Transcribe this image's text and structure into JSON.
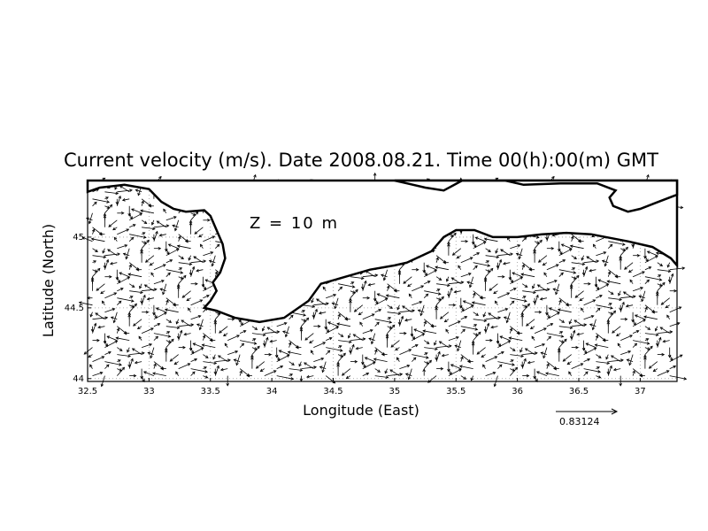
{
  "chart_data": {
    "type": "vector-field",
    "title": "Current velocity (m/s). Date 2008.08.21. Time 00(h):00(m) GMT",
    "xlabel": "Longitude (East)",
    "ylabel": "Latitude (North)",
    "annotation": "Z = 10 m",
    "reference_vector_label": "0.83124",
    "reference_vector_value": 0.83124,
    "xlim": [
      32.5,
      37.3
    ],
    "ylim": [
      43.98,
      45.4
    ],
    "x_ticks": [
      32.5,
      33,
      33.5,
      34,
      34.5,
      35,
      35.5,
      36,
      36.5,
      37
    ],
    "x_tick_labels": [
      "32.5",
      "33",
      "33.5",
      "34",
      "34.5",
      "35",
      "35.5",
      "36",
      "36.5",
      "37"
    ],
    "y_ticks": [
      44,
      44.5,
      45
    ],
    "y_tick_labels": [
      "44",
      "44.5",
      "45"
    ],
    "grid": true,
    "coastline_south_lon_lat": [
      [
        32.5,
        45.32
      ],
      [
        32.6,
        45.35
      ],
      [
        32.8,
        45.37
      ],
      [
        33.0,
        45.34
      ],
      [
        33.1,
        45.25
      ],
      [
        33.2,
        45.2
      ],
      [
        33.3,
        45.18
      ],
      [
        33.45,
        45.19
      ],
      [
        33.5,
        45.15
      ],
      [
        33.55,
        45.05
      ],
      [
        33.6,
        44.95
      ],
      [
        33.62,
        44.85
      ],
      [
        33.58,
        44.75
      ],
      [
        33.52,
        44.68
      ],
      [
        33.55,
        44.62
      ],
      [
        33.5,
        44.55
      ],
      [
        33.45,
        44.5
      ],
      [
        33.55,
        44.48
      ],
      [
        33.7,
        44.43
      ],
      [
        33.9,
        44.4
      ],
      [
        34.1,
        44.43
      ],
      [
        34.3,
        44.55
      ],
      [
        34.4,
        44.67
      ],
      [
        34.6,
        44.72
      ],
      [
        34.8,
        44.77
      ],
      [
        35.0,
        44.8
      ],
      [
        35.1,
        44.82
      ],
      [
        35.3,
        44.9
      ],
      [
        35.4,
        45.0
      ],
      [
        35.5,
        45.05
      ],
      [
        35.65,
        45.05
      ],
      [
        35.8,
        45.0
      ],
      [
        36.0,
        45.0
      ],
      [
        36.2,
        45.02
      ],
      [
        36.4,
        45.03
      ],
      [
        36.6,
        45.02
      ],
      [
        36.9,
        44.97
      ],
      [
        37.1,
        44.93
      ],
      [
        37.25,
        44.85
      ],
      [
        37.3,
        44.8
      ]
    ],
    "coastline_north_lon_lat": [
      [
        35.0,
        45.4
      ],
      [
        35.1,
        45.38
      ],
      [
        35.25,
        45.35
      ],
      [
        35.4,
        45.33
      ],
      [
        35.55,
        45.4
      ],
      [
        35.9,
        45.4
      ],
      [
        36.05,
        45.37
      ],
      [
        36.35,
        45.38
      ],
      [
        36.65,
        45.38
      ],
      [
        36.8,
        45.33
      ],
      [
        36.75,
        45.28
      ],
      [
        36.78,
        45.22
      ],
      [
        36.9,
        45.18
      ],
      [
        37.0,
        45.2
      ],
      [
        37.12,
        45.24
      ],
      [
        37.3,
        45.3
      ]
    ],
    "vectors_u_v_ms": [
      [
        0.1,
        0.05
      ],
      [
        -0.08,
        0.12
      ],
      [
        0.15,
        -0.1
      ],
      [
        -0.12,
        -0.08
      ],
      [
        0.05,
        0.15
      ],
      [
        0.2,
        0.0
      ],
      [
        -0.18,
        0.06
      ],
      [
        0.0,
        -0.16
      ],
      [
        0.12,
        0.12
      ],
      [
        -0.06,
        -0.14
      ],
      [
        0.18,
        0.08
      ],
      [
        -0.15,
        0.0
      ],
      [
        0.08,
        -0.18
      ],
      [
        0.0,
        0.2
      ],
      [
        -0.2,
        -0.04
      ],
      [
        0.14,
        -0.06
      ],
      [
        0.3,
        0.1
      ],
      [
        0.4,
        -0.05
      ],
      [
        0.35,
        0.15
      ],
      [
        -0.3,
        0.12
      ],
      [
        -0.25,
        -0.2
      ],
      [
        0.28,
        -0.22
      ],
      [
        0.1,
        0.3
      ],
      [
        -0.1,
        -0.32
      ],
      [
        0.45,
        0.05
      ],
      [
        0.5,
        -0.1
      ],
      [
        -0.4,
        0.08
      ],
      [
        0.38,
        0.2
      ],
      [
        0.0,
        0.35
      ],
      [
        0.0,
        -0.3
      ],
      [
        0.22,
        0.25
      ],
      [
        -0.28,
        0.18
      ]
    ]
  }
}
